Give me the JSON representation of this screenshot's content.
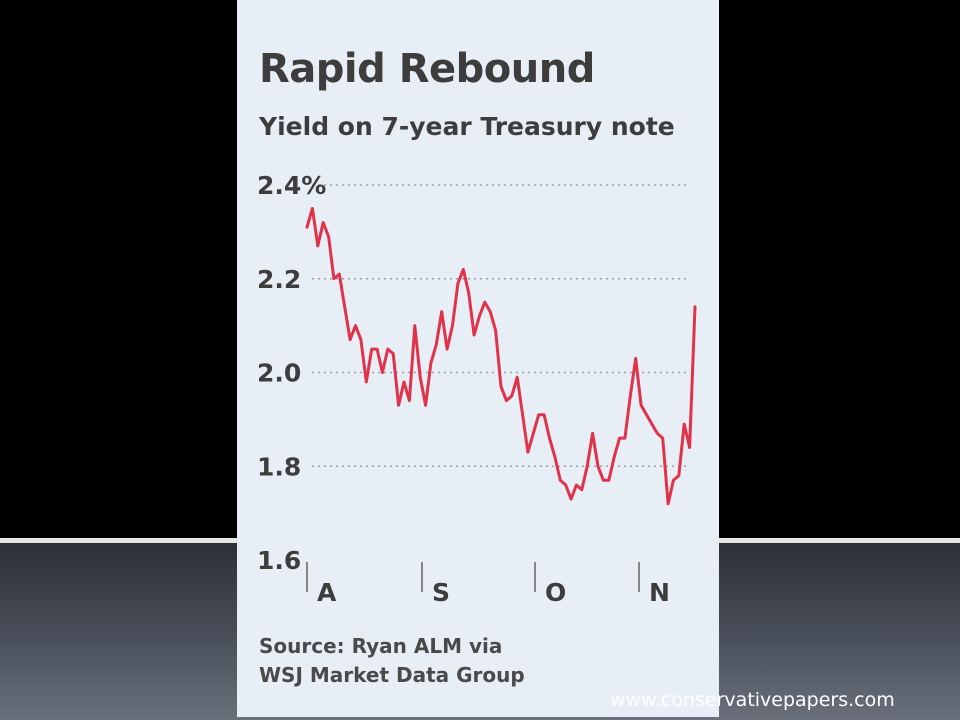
{
  "chart_data": {
    "type": "line",
    "title": "Rapid Rebound",
    "subtitle": "Yield on 7-year Treasury note",
    "ylim": [
      1.6,
      2.4
    ],
    "yticks": [
      {
        "value": 2.4,
        "label": "2.4%"
      },
      {
        "value": 2.2,
        "label": "2.2"
      },
      {
        "value": 2.0,
        "label": "2.0"
      },
      {
        "value": 1.8,
        "label": "1.8"
      },
      {
        "value": 1.6,
        "label": "1.6"
      }
    ],
    "xticks": [
      "A",
      "S",
      "O",
      "N"
    ],
    "grid": "horizontal dotted",
    "series": [
      {
        "color": "#e0334a",
        "values": [
          2.31,
          2.35,
          2.27,
          2.32,
          2.29,
          2.2,
          2.21,
          2.14,
          2.07,
          2.1,
          2.07,
          1.98,
          2.05,
          2.05,
          2.0,
          2.05,
          2.04,
          1.93,
          1.98,
          1.94,
          2.1,
          1.99,
          1.93,
          2.02,
          2.06,
          2.13,
          2.05,
          2.1,
          2.19,
          2.22,
          2.17,
          2.08,
          2.12,
          2.15,
          2.13,
          2.09,
          1.97,
          1.94,
          1.95,
          1.99,
          1.91,
          1.83,
          1.87,
          1.91,
          1.91,
          1.86,
          1.82,
          1.77,
          1.76,
          1.73,
          1.76,
          1.75,
          1.8,
          1.87,
          1.8,
          1.77,
          1.77,
          1.82,
          1.86,
          1.86,
          1.95,
          2.03,
          1.93,
          1.91,
          1.89,
          1.87,
          1.86,
          1.72,
          1.77,
          1.78,
          1.89,
          1.84,
          2.14
        ]
      }
    ]
  },
  "source": {
    "line1": "Source: Ryan ALM via",
    "line2": "WSJ Market Data Group"
  },
  "watermark": "www.conservativepapers.com"
}
